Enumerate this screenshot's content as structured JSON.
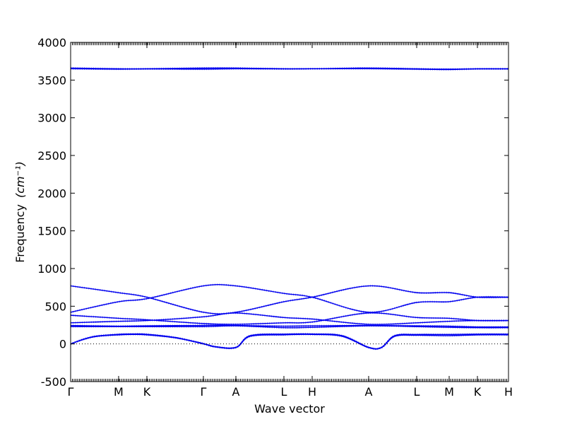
{
  "chart_data": {
    "type": "line",
    "title": "",
    "xlabel": "Wave vector",
    "ylabel": "Frequency",
    "ylabel_unit": "(cm⁻¹)",
    "ylim": [
      -500,
      4000
    ],
    "yticks": [
      -500,
      0,
      500,
      1000,
      1500,
      2000,
      2500,
      3000,
      3500,
      4000
    ],
    "xlim": [
      0,
      1.0
    ],
    "zero_line": true,
    "grid": false,
    "legend": "none",
    "line_color": "#0000ee",
    "high_symmetry_points": [
      {
        "label": "Γ",
        "x": 0.0
      },
      {
        "label": "M",
        "x": 0.1096
      },
      {
        "label": "K",
        "x": 0.1742
      },
      {
        "label": "Γ",
        "x": 0.3032
      },
      {
        "label": "A",
        "x": 0.3774
      },
      {
        "label": "L",
        "x": 0.4871
      },
      {
        "label": "H",
        "x": 0.5516
      },
      {
        "label": "A",
        "x": 0.6806
      },
      {
        "label": "L",
        "x": 0.7903
      },
      {
        "label": "M",
        "x": 0.8645
      },
      {
        "label": "K",
        "x": 0.929
      },
      {
        "label": "H",
        "x": 1.0
      }
    ],
    "series": [
      {
        "values": [
          [
            0,
            0
          ],
          [
            0.03,
            60
          ],
          [
            0.06,
            100
          ],
          [
            0.1096,
            120
          ],
          [
            0.14,
            125
          ],
          [
            0.1742,
            120
          ],
          [
            0.24,
            80
          ],
          [
            0.3032,
            0
          ],
          [
            0.33,
            -40
          ],
          [
            0.3774,
            -50
          ],
          [
            0.41,
            100
          ],
          [
            0.4871,
            120
          ],
          [
            0.5516,
            125
          ],
          [
            0.62,
            100
          ],
          [
            0.6806,
            -50
          ],
          [
            0.71,
            -50
          ],
          [
            0.74,
            100
          ],
          [
            0.7903,
            115
          ],
          [
            0.8645,
            110
          ],
          [
            0.929,
            120
          ],
          [
            1.0,
            120
          ]
        ]
      },
      {
        "values": [
          [
            0,
            0
          ],
          [
            0.03,
            65
          ],
          [
            0.06,
            105
          ],
          [
            0.1096,
            128
          ],
          [
            0.14,
            132
          ],
          [
            0.1742,
            128
          ],
          [
            0.24,
            85
          ],
          [
            0.3032,
            5
          ],
          [
            0.33,
            -35
          ],
          [
            0.3774,
            -45
          ],
          [
            0.41,
            110
          ],
          [
            0.4871,
            130
          ],
          [
            0.5516,
            132
          ],
          [
            0.62,
            110
          ],
          [
            0.6806,
            -45
          ],
          [
            0.71,
            -45
          ],
          [
            0.74,
            110
          ],
          [
            0.7903,
            125
          ],
          [
            0.8645,
            125
          ],
          [
            0.929,
            130
          ],
          [
            1.0,
            130
          ]
        ]
      },
      {
        "values": [
          [
            0,
            230
          ],
          [
            0.1096,
            230
          ],
          [
            0.1742,
            230
          ],
          [
            0.3032,
            230
          ],
          [
            0.3774,
            240
          ],
          [
            0.4871,
            215
          ],
          [
            0.5516,
            220
          ],
          [
            0.6806,
            240
          ],
          [
            0.7903,
            230
          ],
          [
            0.8645,
            220
          ],
          [
            0.929,
            215
          ],
          [
            1.0,
            215
          ]
        ]
      },
      {
        "values": [
          [
            0,
            245
          ],
          [
            0.1096,
            235
          ],
          [
            0.1742,
            240
          ],
          [
            0.3032,
            245
          ],
          [
            0.3774,
            245
          ],
          [
            0.4871,
            235
          ],
          [
            0.5516,
            240
          ],
          [
            0.6806,
            245
          ],
          [
            0.7903,
            240
          ],
          [
            0.8645,
            235
          ],
          [
            0.929,
            225
          ],
          [
            1.0,
            225
          ]
        ]
      },
      {
        "values": [
          [
            0,
            280
          ],
          [
            0.1096,
            300
          ],
          [
            0.1742,
            310
          ],
          [
            0.3032,
            360
          ],
          [
            0.3774,
            410
          ],
          [
            0.4871,
            350
          ],
          [
            0.5516,
            330
          ],
          [
            0.6806,
            260
          ],
          [
            0.7903,
            280
          ],
          [
            0.8645,
            300
          ],
          [
            0.929,
            310
          ],
          [
            1.0,
            310
          ]
        ]
      },
      {
        "values": [
          [
            0,
            380
          ],
          [
            0.1096,
            340
          ],
          [
            0.1742,
            320
          ],
          [
            0.3032,
            270
          ],
          [
            0.3774,
            260
          ],
          [
            0.4871,
            280
          ],
          [
            0.5516,
            290
          ],
          [
            0.6806,
            410
          ],
          [
            0.7903,
            350
          ],
          [
            0.8645,
            340
          ],
          [
            0.929,
            310
          ],
          [
            1.0,
            310
          ]
        ]
      },
      {
        "values": [
          [
            0,
            420
          ],
          [
            0.1096,
            560
          ],
          [
            0.1742,
            600
          ],
          [
            0.3032,
            770
          ],
          [
            0.3774,
            770
          ],
          [
            0.4871,
            670
          ],
          [
            0.5516,
            620
          ],
          [
            0.6806,
            420
          ],
          [
            0.7903,
            550
          ],
          [
            0.8645,
            560
          ],
          [
            0.929,
            620
          ],
          [
            1.0,
            620
          ]
        ]
      },
      {
        "values": [
          [
            0,
            770
          ],
          [
            0.1096,
            680
          ],
          [
            0.1742,
            620
          ],
          [
            0.3032,
            420
          ],
          [
            0.3774,
            420
          ],
          [
            0.4871,
            560
          ],
          [
            0.5516,
            620
          ],
          [
            0.6806,
            770
          ],
          [
            0.7903,
            680
          ],
          [
            0.8645,
            680
          ],
          [
            0.929,
            620
          ],
          [
            1.0,
            620
          ]
        ]
      },
      {
        "values": [
          [
            0,
            3650
          ],
          [
            0.1096,
            3645
          ],
          [
            0.1742,
            3648
          ],
          [
            0.3032,
            3645
          ],
          [
            0.3774,
            3650
          ],
          [
            0.4871,
            3648
          ],
          [
            0.5516,
            3650
          ],
          [
            0.6806,
            3652
          ],
          [
            0.7903,
            3645
          ],
          [
            0.8645,
            3640
          ],
          [
            0.929,
            3648
          ],
          [
            1.0,
            3648
          ]
        ]
      },
      {
        "values": [
          [
            0,
            3660
          ],
          [
            0.1096,
            3650
          ],
          [
            0.1742,
            3650
          ],
          [
            0.3032,
            3660
          ],
          [
            0.3774,
            3660
          ],
          [
            0.4871,
            3650
          ],
          [
            0.5516,
            3650
          ],
          [
            0.6806,
            3660
          ],
          [
            0.7903,
            3650
          ],
          [
            0.8645,
            3645
          ],
          [
            0.929,
            3650
          ],
          [
            1.0,
            3650
          ]
        ]
      }
    ]
  }
}
